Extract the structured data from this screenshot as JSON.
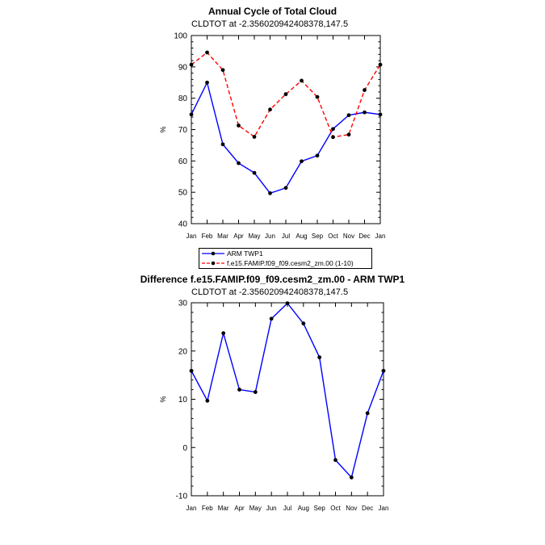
{
  "chart_data": [
    {
      "type": "line",
      "title": "Annual Cycle of Total Cloud",
      "subtitle": "CLDTOT at -2.356020942408378,147.5",
      "xlabel": "",
      "ylabel": "%",
      "categories": [
        "Jan",
        "Feb",
        "Mar",
        "Apr",
        "May",
        "Jun",
        "Jul",
        "Aug",
        "Sep",
        "Oct",
        "Nov",
        "Dec",
        "Jan"
      ],
      "ylim": [
        40,
        100
      ],
      "yticks": [
        40,
        50,
        60,
        70,
        80,
        90,
        100
      ],
      "series": [
        {
          "name": "ARM TWP1",
          "color": "#0000ff",
          "dash": "solid",
          "values": [
            74.8,
            85.0,
            65.3,
            59.3,
            56.2,
            49.7,
            51.4,
            59.9,
            61.7,
            70.2,
            74.6,
            75.5,
            74.8
          ]
        },
        {
          "name": "f.e15.FAMIP.f09_f09.cesm2_zm.00 (1-10)",
          "color": "#ff0000",
          "dash": "dashed",
          "values": [
            90.7,
            94.6,
            89.0,
            71.3,
            67.7,
            76.4,
            81.3,
            85.6,
            80.4,
            67.6,
            68.4,
            82.6,
            90.7
          ]
        }
      ]
    },
    {
      "type": "line",
      "title": "Difference f.e15.FAMIP.f09_f09.cesm2_zm.00 - ARM TWP1",
      "subtitle": "CLDTOT at -2.356020942408378,147.5",
      "xlabel": "",
      "ylabel": "%",
      "categories": [
        "Jan",
        "Feb",
        "Mar",
        "Apr",
        "May",
        "Jun",
        "Jul",
        "Aug",
        "Sep",
        "Oct",
        "Nov",
        "Dec",
        "Jan"
      ],
      "ylim": [
        -10,
        30
      ],
      "yticks": [
        -10,
        0,
        10,
        20,
        30
      ],
      "series": [
        {
          "name": "",
          "color": "#0000ff",
          "dash": "solid",
          "values": [
            15.9,
            9.7,
            23.7,
            12.0,
            11.5,
            26.7,
            29.9,
            25.7,
            18.7,
            -2.6,
            -6.2,
            7.1,
            15.9
          ]
        }
      ]
    }
  ],
  "legend": {
    "entries": [
      {
        "label": "ARM TWP1",
        "color": "#0000ff",
        "dash": "solid"
      },
      {
        "label": "f.e15.FAMIP.f09_f09.cesm2_zm.00 (1-10)",
        "color": "#ff0000",
        "dash": "dashed"
      }
    ]
  }
}
